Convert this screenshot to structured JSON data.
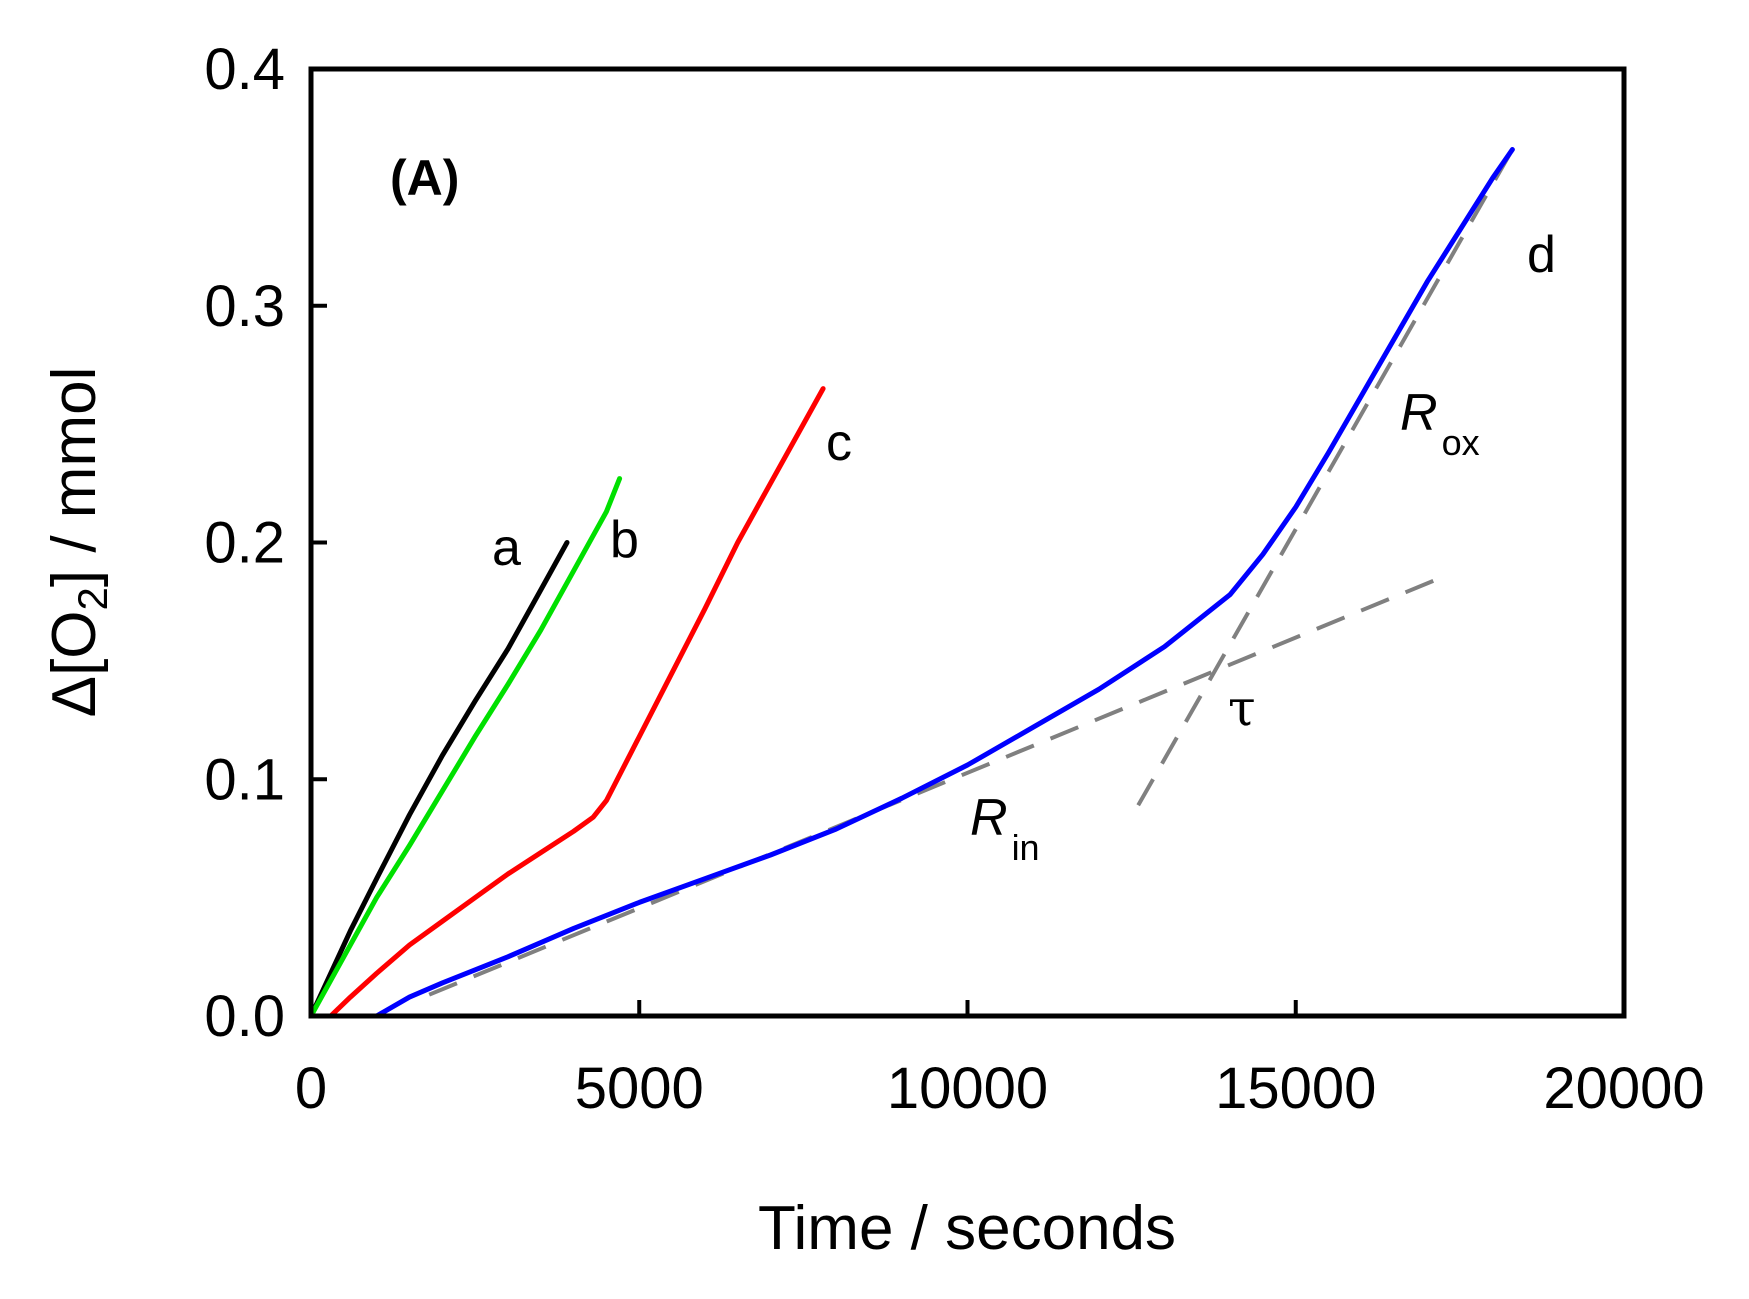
{
  "chart_data": {
    "type": "line",
    "panel_label": "(A)",
    "xlabel": "Time / seconds",
    "ylabel": {
      "prefix": "Δ[O",
      "subscript": "2",
      "suffix": "] / mmol"
    },
    "xlim": [
      0,
      20000
    ],
    "ylim": [
      0,
      0.4
    ],
    "x_ticks": [
      0,
      5000,
      10000,
      15000,
      20000
    ],
    "x_tick_labels": [
      "0",
      "5000",
      "10000",
      "15000",
      "20000"
    ],
    "y_ticks": [
      0.0,
      0.1,
      0.2,
      0.3,
      0.4
    ],
    "y_tick_labels": [
      "0.0",
      "0.1",
      "0.2",
      "0.3",
      "0.4"
    ],
    "grid": false,
    "series": [
      {
        "name": "a",
        "color": "#000000",
        "x": [
          0,
          300,
          600,
          1000,
          1500,
          2000,
          2500,
          3000,
          3500,
          3900
        ],
        "y": [
          0,
          0.018,
          0.036,
          0.058,
          0.085,
          0.11,
          0.133,
          0.155,
          0.18,
          0.2
        ]
      },
      {
        "name": "b",
        "color": "#00e000",
        "x": [
          0,
          500,
          1000,
          1500,
          2000,
          2500,
          3000,
          3500,
          4000,
          4500,
          4700
        ],
        "y": [
          0,
          0.025,
          0.05,
          0.072,
          0.095,
          0.118,
          0.14,
          0.163,
          0.188,
          0.213,
          0.227
        ]
      },
      {
        "name": "c",
        "color": "#ff0000",
        "x": [
          300,
          600,
          1000,
          1500,
          2000,
          2500,
          3000,
          3500,
          4000,
          4300,
          4500,
          5000,
          5500,
          6000,
          6500,
          7000,
          7500,
          7800
        ],
        "y": [
          0,
          0.008,
          0.018,
          0.03,
          0.04,
          0.05,
          0.06,
          0.069,
          0.078,
          0.084,
          0.091,
          0.118,
          0.145,
          0.172,
          0.2,
          0.225,
          0.25,
          0.265
        ]
      },
      {
        "name": "d",
        "color": "#0000ff",
        "x": [
          500,
          1000,
          1500,
          2000,
          3000,
          4000,
          5000,
          6000,
          7000,
          8000,
          9000,
          10000,
          11000,
          12000,
          13000,
          14000,
          14500,
          15000,
          15500,
          16000,
          16500,
          17000,
          17500,
          18000,
          18300
        ],
        "y": [
          0,
          0,
          0.008,
          0.014,
          0.025,
          0.037,
          0.048,
          0.058,
          0.068,
          0.079,
          0.092,
          0.106,
          0.122,
          0.138,
          0.156,
          0.178,
          0.195,
          0.215,
          0.238,
          0.262,
          0.286,
          0.31,
          0.332,
          0.354,
          0.366
        ]
      }
    ],
    "fit_lines": [
      {
        "name": "R_in",
        "color": "#808080",
        "x": [
          1800,
          17200
        ],
        "y": [
          0.009,
          0.185
        ]
      },
      {
        "name": "R_ox",
        "color": "#808080",
        "x": [
          12600,
          18300
        ],
        "y": [
          0.089,
          0.366
        ]
      }
    ],
    "annotations": [
      {
        "name": "a",
        "text": "a"
      },
      {
        "name": "b",
        "text": "b"
      },
      {
        "name": "c",
        "text": "c"
      },
      {
        "name": "d",
        "text": "d"
      },
      {
        "name": "tau",
        "text": "τ"
      },
      {
        "name": "R_in",
        "main": "R",
        "sub": "in"
      },
      {
        "name": "R_ox",
        "main": "R",
        "sub": "ox"
      }
    ]
  }
}
